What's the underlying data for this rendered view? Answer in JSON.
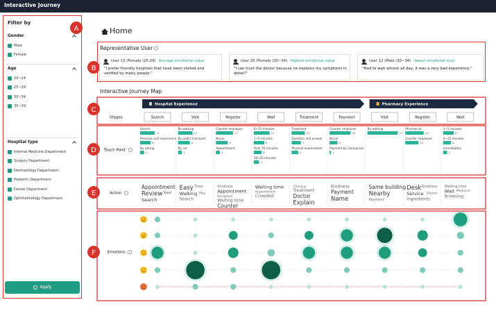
{
  "app_title": "Interactive Journey",
  "markers": [
    "A",
    "B",
    "C",
    "D",
    "E",
    "F"
  ],
  "sidebar": {
    "title": "Filter by",
    "groups": [
      {
        "title": "Gender",
        "options": [
          "Male",
          "Female"
        ]
      },
      {
        "title": "Age",
        "options": [
          "20~24",
          "25~29",
          "30~34",
          "35~39"
        ]
      },
      {
        "title": "Hospital type",
        "options": [
          "Internal Medicine Department",
          "Surgery Department",
          "Dermatology Department",
          "Pediatric Department",
          "Dental Department",
          "Ophthalmology Department"
        ]
      }
    ],
    "apply": "Apply"
  },
  "page_title": "Home",
  "representative": {
    "title": "Representative User",
    "users": [
      {
        "name": "User 13 (Female (25-29)",
        "tag": "Average emotional value",
        "quote": "\"I prefer friendly hospitals that have been visited and verified by many people.\""
      },
      {
        "name": "User 20 (Female (30~34)",
        "tag": "Highest emotional value",
        "quote": "\"I can trust the doctor because he explains my symptoms in detail!\""
      },
      {
        "name": "User 12 (Male /30~34)",
        "tag": "lowest emotional level",
        "quote": "\"Had to wait almost all day, it was a very bad experience.\""
      }
    ]
  },
  "journey": {
    "title": "Interactive Journey Map",
    "phases": [
      {
        "name": "Hospital Experience",
        "stages": [
          "Search",
          "Visit",
          "Register",
          "Wait",
          "Treatment",
          "Payment"
        ]
      },
      {
        "name": "Pharmacy Experience",
        "stages": [
          "Visit",
          "Register",
          "Wait"
        ]
      }
    ],
    "stages_label": "Stages",
    "touch_label": "Touch Point",
    "touch": [
      [
        {
          "label": "Search",
          "value": 11
        },
        {
          "label": "Previous visit experience",
          "value": 8
        },
        {
          "label": "By asking",
          "value": 3
        }
      ],
      [
        {
          "label": "By walking",
          "value": 11
        },
        {
          "label": "By public transport",
          "value": 9
        },
        {
          "label": "By car",
          "value": 3
        }
      ],
      [
        {
          "label": "Counter employee",
          "value": 13
        },
        {
          "label": "Nurse",
          "value": 9
        },
        {
          "label": "Appointment",
          "value": 3
        }
      ],
      [
        {
          "label": "6~15 minutes",
          "value": 12
        },
        {
          "label": "1~5 minutes",
          "value": 8
        },
        {
          "label": "Over 25 minutes",
          "value": 6
        },
        {
          "label": "16~25 minutes",
          "value": 4
        }
      ],
      [
        {
          "label": "Treatment",
          "value": 10
        },
        {
          "label": "Question and answer",
          "value": 7
        },
        {
          "label": "Physical examination",
          "value": 5
        }
      ],
      [
        {
          "label": "Counter employee",
          "value": 16
        },
        {
          "label": "Nurse",
          "value": 6
        },
        {
          "label": "Payment by companion",
          "value": 1
        }
      ],
      [
        {
          "label": "By walking",
          "value": 23
        }
      ],
      [
        {
          "label": "Pharmacist",
          "value": 14
        },
        {
          "label": "Counter employee",
          "value": 10
        }
      ],
      [
        {
          "label": "1~5 minutes",
          "value": 8
        },
        {
          "label": "6~15 minutes",
          "value": 6
        },
        {
          "label": "Immediately",
          "value": 3
        }
      ]
    ],
    "action_label": "Action",
    "actions": [
      [
        "Appointment",
        "Review",
        "Near",
        "Search"
      ],
      [
        "Easy",
        "Time",
        "Walking",
        "Map",
        "Search"
      ],
      [
        "Kindness",
        "Appointment",
        "Reception",
        "Waiting time",
        "Counter"
      ],
      [
        "Waiting time",
        "Appointment",
        "Crowded"
      ],
      [
        "Checkup",
        "Treatment",
        "Doctor",
        "Explain"
      ],
      [
        "Kindness",
        "Payment",
        "Name"
      ],
      [
        "Same building",
        "Nearby",
        "Payment"
      ],
      [
        "Desk",
        "Kindness",
        "Service",
        "Explain",
        "Ingredients"
      ],
      [
        "Waiting time",
        "Wait",
        "Medicine",
        "Browsing"
      ]
    ],
    "emotions_label": "Emotions",
    "emotions": [
      [
        2,
        1,
        1,
        1,
        1,
        1,
        1,
        1,
        7
      ],
      [
        2,
        1,
        4,
        2,
        4,
        6,
        8,
        5,
        3
      ],
      [
        6,
        1,
        5,
        3,
        6,
        6,
        6,
        4,
        2
      ],
      [
        2,
        10,
        2,
        10,
        2,
        2,
        2,
        2,
        2
      ],
      [
        1,
        2,
        2,
        1,
        1,
        1,
        1,
        1,
        1
      ]
    ]
  }
}
